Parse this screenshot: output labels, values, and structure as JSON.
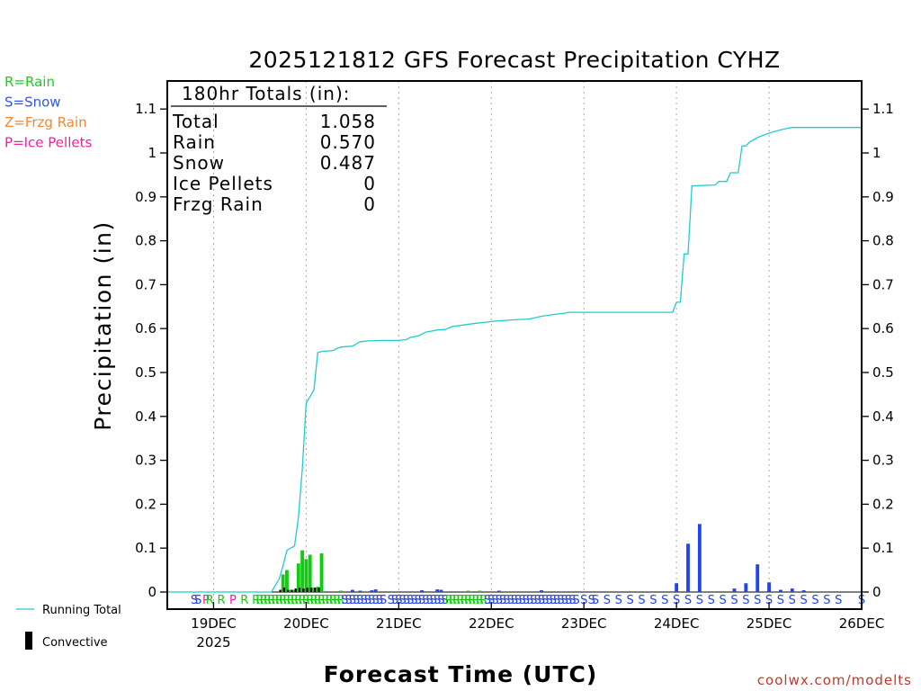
{
  "chart_data": {
    "type": "bar",
    "title": "2025121812 GFS Forecast Precipitation CYHZ",
    "ylabel": "Precipitation (in)",
    "xlabel": "Forecast Time (UTC)",
    "ylim": [
      0,
      1.15
    ],
    "xlim_hours": [
      0,
      180
    ],
    "yticks": [
      "0",
      "0.1",
      "0.2",
      "0.3",
      "0.4",
      "0.5",
      "0.6",
      "0.7",
      "0.8",
      "0.9",
      "1",
      "1.1"
    ],
    "ytick_values": [
      0,
      0.1,
      0.2,
      0.3,
      0.4,
      0.5,
      0.6,
      0.7,
      0.8,
      0.9,
      1.0,
      1.1
    ],
    "xticks": [
      {
        "label": "19DEC",
        "hour": 12,
        "sublabel": "2025"
      },
      {
        "label": "20DEC",
        "hour": 36
      },
      {
        "label": "21DEC",
        "hour": 60
      },
      {
        "label": "22DEC",
        "hour": 84
      },
      {
        "label": "23DEC",
        "hour": 108
      },
      {
        "label": "24DEC",
        "hour": 132
      },
      {
        "label": "25DEC",
        "hour": 156
      },
      {
        "label": "26DEC",
        "hour": 180
      }
    ],
    "type_legend": [
      {
        "text": "R=Rain",
        "color": "#22cc22"
      },
      {
        "text": "S=Snow",
        "color": "#3355ee"
      },
      {
        "text": "Z=Frzg Rain",
        "color": "#ee8833"
      },
      {
        "text": "P=Ice Pellets",
        "color": "#ee2299"
      }
    ],
    "series_legend": {
      "running_total": "Running Total",
      "convective": "Convective"
    },
    "totals": {
      "header": "180hr Totals (in):",
      "rows": [
        {
          "label": "Total",
          "value": "1.058"
        },
        {
          "label": "Rain",
          "value": "0.570"
        },
        {
          "label": "Snow",
          "value": "0.487"
        },
        {
          "label": "Ice Pellets",
          "value": "0"
        },
        {
          "label": "Frzg Rain",
          "value": "0"
        }
      ]
    },
    "running_total": {
      "x": [
        0,
        27,
        29,
        30,
        31,
        32,
        33,
        34,
        35,
        36,
        37,
        38,
        39,
        40,
        43,
        44,
        45,
        48,
        49,
        50,
        52,
        56,
        60,
        62,
        63,
        65,
        67,
        69,
        70,
        72,
        74,
        80,
        83,
        85,
        90,
        94,
        97,
        100,
        103,
        104,
        110,
        126,
        131,
        132,
        133,
        134,
        135,
        136,
        142,
        143,
        145,
        146,
        148,
        149,
        150,
        151,
        153,
        155,
        156,
        157,
        160,
        162,
        164,
        180
      ],
      "values": [
        0,
        0,
        0.03,
        0.06,
        0.095,
        0.1,
        0.105,
        0.17,
        0.28,
        0.43,
        0.445,
        0.46,
        0.545,
        0.548,
        0.55,
        0.555,
        0.558,
        0.56,
        0.565,
        0.57,
        0.572,
        0.573,
        0.573,
        0.575,
        0.58,
        0.583,
        0.592,
        0.595,
        0.597,
        0.598,
        0.605,
        0.612,
        0.615,
        0.617,
        0.62,
        0.622,
        0.628,
        0.632,
        0.635,
        0.637,
        0.637,
        0.637,
        0.637,
        0.66,
        0.66,
        0.77,
        0.77,
        0.925,
        0.927,
        0.935,
        0.935,
        0.955,
        0.955,
        1.016,
        1.016,
        1.025,
        1.035,
        1.042,
        1.045,
        1.048,
        1.055,
        1.058,
        1.058,
        1.058
      ]
    },
    "bars": [
      {
        "hour": 30,
        "value": 0.04,
        "ptype": "rain",
        "conv": 0.005
      },
      {
        "hour": 31,
        "value": 0.05,
        "ptype": "rain",
        "conv": 0.01
      },
      {
        "hour": 32,
        "value": 0.005,
        "ptype": "rain",
        "conv": 0.005
      },
      {
        "hour": 33,
        "value": 0.005,
        "ptype": "rain",
        "conv": 0.005
      },
      {
        "hour": 34,
        "value": 0.065,
        "ptype": "rain",
        "conv": 0.008
      },
      {
        "hour": 35,
        "value": 0.095,
        "ptype": "rain",
        "conv": 0.01
      },
      {
        "hour": 36,
        "value": 0.075,
        "ptype": "rain",
        "conv": 0.008
      },
      {
        "hour": 37,
        "value": 0.085,
        "ptype": "rain",
        "conv": 0.01
      },
      {
        "hour": 38,
        "value": 0.01,
        "ptype": "rain",
        "conv": 0.01
      },
      {
        "hour": 39,
        "value": 0.012,
        "ptype": "rain",
        "conv": 0.01
      },
      {
        "hour": 40,
        "value": 0.088,
        "ptype": "rain",
        "conv": 0.01
      },
      {
        "hour": 45,
        "value": 0.003,
        "ptype": "rain",
        "conv": 0
      },
      {
        "hour": 48,
        "value": 0.005,
        "ptype": "snow",
        "conv": 0
      },
      {
        "hour": 50,
        "value": 0.002,
        "ptype": "snow",
        "conv": 0
      },
      {
        "hour": 53,
        "value": 0.004,
        "ptype": "snow",
        "conv": 0
      },
      {
        "hour": 54,
        "value": 0.006,
        "ptype": "snow",
        "conv": 0
      },
      {
        "hour": 66,
        "value": 0.004,
        "ptype": "snow",
        "conv": 0
      },
      {
        "hour": 70,
        "value": 0.006,
        "ptype": "snow",
        "conv": 0
      },
      {
        "hour": 71,
        "value": 0.005,
        "ptype": "snow",
        "conv": 0
      },
      {
        "hour": 78,
        "value": 0.003,
        "ptype": "rain",
        "conv": 0
      },
      {
        "hour": 81,
        "value": 0.003,
        "ptype": "rain",
        "conv": 0
      },
      {
        "hour": 86,
        "value": 0.002,
        "ptype": "snow",
        "conv": 0
      },
      {
        "hour": 97,
        "value": 0.004,
        "ptype": "snow",
        "conv": 0
      },
      {
        "hour": 132,
        "value": 0.02,
        "ptype": "snow",
        "conv": 0
      },
      {
        "hour": 135,
        "value": 0.11,
        "ptype": "snow",
        "conv": 0
      },
      {
        "hour": 138,
        "value": 0.155,
        "ptype": "snow",
        "conv": 0
      },
      {
        "hour": 147,
        "value": 0.008,
        "ptype": "snow",
        "conv": 0
      },
      {
        "hour": 150,
        "value": 0.02,
        "ptype": "snow",
        "conv": 0
      },
      {
        "hour": 153,
        "value": 0.063,
        "ptype": "snow",
        "conv": 0
      },
      {
        "hour": 156,
        "value": 0.022,
        "ptype": "snow",
        "conv": 0
      },
      {
        "hour": 159,
        "value": 0.005,
        "ptype": "snow",
        "conv": 0
      },
      {
        "hour": 162,
        "value": 0.008,
        "ptype": "snow",
        "conv": 0
      },
      {
        "hour": 165,
        "value": 0.004,
        "ptype": "snow",
        "conv": 0
      }
    ],
    "type_marks": [
      {
        "hour": 7,
        "t": "S"
      },
      {
        "hour": 8,
        "t": "S"
      },
      {
        "hour": 10,
        "t": "P"
      },
      {
        "hour": 11,
        "t": "R"
      },
      {
        "hour": 14,
        "t": "R"
      },
      {
        "hour": 17,
        "t": "P"
      },
      {
        "hour": 20,
        "t": "R"
      },
      {
        "hour": 23,
        "t": "R"
      },
      {
        "hour": 24,
        "t": "R"
      },
      {
        "hour": 25,
        "t": "R"
      },
      {
        "hour": 26,
        "t": "R"
      },
      {
        "hour": 27,
        "t": "R"
      },
      {
        "hour": 28,
        "t": "R"
      },
      {
        "hour": 29,
        "t": "R"
      },
      {
        "hour": 30,
        "t": "R"
      },
      {
        "hour": 31,
        "t": "R"
      },
      {
        "hour": 32,
        "t": "R"
      },
      {
        "hour": 33,
        "t": "R"
      },
      {
        "hour": 34,
        "t": "R"
      },
      {
        "hour": 35,
        "t": "R"
      },
      {
        "hour": 36,
        "t": "R"
      },
      {
        "hour": 37,
        "t": "R"
      },
      {
        "hour": 38,
        "t": "R"
      },
      {
        "hour": 39,
        "t": "R"
      },
      {
        "hour": 40,
        "t": "R"
      },
      {
        "hour": 41,
        "t": "R"
      },
      {
        "hour": 42,
        "t": "R"
      },
      {
        "hour": 43,
        "t": "R"
      },
      {
        "hour": 44,
        "t": "R"
      },
      {
        "hour": 45,
        "t": "R"
      },
      {
        "hour": 46,
        "t": "S"
      },
      {
        "hour": 47,
        "t": "S"
      },
      {
        "hour": 48,
        "t": "S"
      },
      {
        "hour": 49,
        "t": "S"
      },
      {
        "hour": 50,
        "t": "S"
      },
      {
        "hour": 51,
        "t": "S"
      },
      {
        "hour": 52,
        "t": "S"
      },
      {
        "hour": 53,
        "t": "S"
      },
      {
        "hour": 54,
        "t": "S"
      },
      {
        "hour": 55,
        "t": "S"
      },
      {
        "hour": 56,
        "t": "S"
      },
      {
        "hour": 58,
        "t": "S"
      },
      {
        "hour": 59,
        "t": "S"
      },
      {
        "hour": 60,
        "t": "S"
      },
      {
        "hour": 61,
        "t": "S"
      },
      {
        "hour": 62,
        "t": "S"
      },
      {
        "hour": 63,
        "t": "S"
      },
      {
        "hour": 64,
        "t": "S"
      },
      {
        "hour": 65,
        "t": "S"
      },
      {
        "hour": 66,
        "t": "S"
      },
      {
        "hour": 67,
        "t": "S"
      },
      {
        "hour": 68,
        "t": "S"
      },
      {
        "hour": 69,
        "t": "S"
      },
      {
        "hour": 70,
        "t": "S"
      },
      {
        "hour": 71,
        "t": "S"
      },
      {
        "hour": 72,
        "t": "S"
      },
      {
        "hour": 73,
        "t": "R"
      },
      {
        "hour": 74,
        "t": "R"
      },
      {
        "hour": 75,
        "t": "R"
      },
      {
        "hour": 76,
        "t": "R"
      },
      {
        "hour": 77,
        "t": "R"
      },
      {
        "hour": 78,
        "t": "R"
      },
      {
        "hour": 79,
        "t": "R"
      },
      {
        "hour": 80,
        "t": "R"
      },
      {
        "hour": 81,
        "t": "R"
      },
      {
        "hour": 82,
        "t": "R"
      },
      {
        "hour": 83,
        "t": "S"
      },
      {
        "hour": 84,
        "t": "S"
      },
      {
        "hour": 85,
        "t": "S"
      },
      {
        "hour": 86,
        "t": "S"
      },
      {
        "hour": 87,
        "t": "S"
      },
      {
        "hour": 88,
        "t": "S"
      },
      {
        "hour": 89,
        "t": "S"
      },
      {
        "hour": 90,
        "t": "S"
      },
      {
        "hour": 91,
        "t": "S"
      },
      {
        "hour": 92,
        "t": "S"
      },
      {
        "hour": 93,
        "t": "S"
      },
      {
        "hour": 94,
        "t": "S"
      },
      {
        "hour": 95,
        "t": "S"
      },
      {
        "hour": 96,
        "t": "S"
      },
      {
        "hour": 97,
        "t": "S"
      },
      {
        "hour": 98,
        "t": "S"
      },
      {
        "hour": 99,
        "t": "S"
      },
      {
        "hour": 100,
        "t": "S"
      },
      {
        "hour": 101,
        "t": "S"
      },
      {
        "hour": 102,
        "t": "S"
      },
      {
        "hour": 103,
        "t": "S"
      },
      {
        "hour": 104,
        "t": "S"
      },
      {
        "hour": 105,
        "t": "S"
      },
      {
        "hour": 106,
        "t": "S"
      },
      {
        "hour": 108,
        "t": "S"
      },
      {
        "hour": 110,
        "t": "S"
      },
      {
        "hour": 111,
        "t": "S"
      },
      {
        "hour": 114,
        "t": "S"
      },
      {
        "hour": 117,
        "t": "S"
      },
      {
        "hour": 120,
        "t": "S"
      },
      {
        "hour": 123,
        "t": "S"
      },
      {
        "hour": 126,
        "t": "S"
      },
      {
        "hour": 129,
        "t": "S"
      },
      {
        "hour": 132,
        "t": "S"
      },
      {
        "hour": 135,
        "t": "S"
      },
      {
        "hour": 138,
        "t": "S"
      },
      {
        "hour": 141,
        "t": "S"
      },
      {
        "hour": 144,
        "t": "S"
      },
      {
        "hour": 147,
        "t": "S"
      },
      {
        "hour": 150,
        "t": "S"
      },
      {
        "hour": 153,
        "t": "S"
      },
      {
        "hour": 156,
        "t": "S"
      },
      {
        "hour": 159,
        "t": "S"
      },
      {
        "hour": 162,
        "t": "S"
      },
      {
        "hour": 165,
        "t": "S"
      },
      {
        "hour": 168,
        "t": "S"
      },
      {
        "hour": 171,
        "t": "S"
      },
      {
        "hour": 174,
        "t": "S"
      },
      {
        "hour": 180,
        "t": "S"
      }
    ],
    "credit": "coolwx.com/modelts"
  },
  "colors": {
    "rain": "#11cc11",
    "snow": "#2244ee",
    "frzg": "#ee8833",
    "ice": "#ee2299",
    "running_total": "#22cccc",
    "convective": "#000000",
    "grid": "#aaaaaa"
  }
}
